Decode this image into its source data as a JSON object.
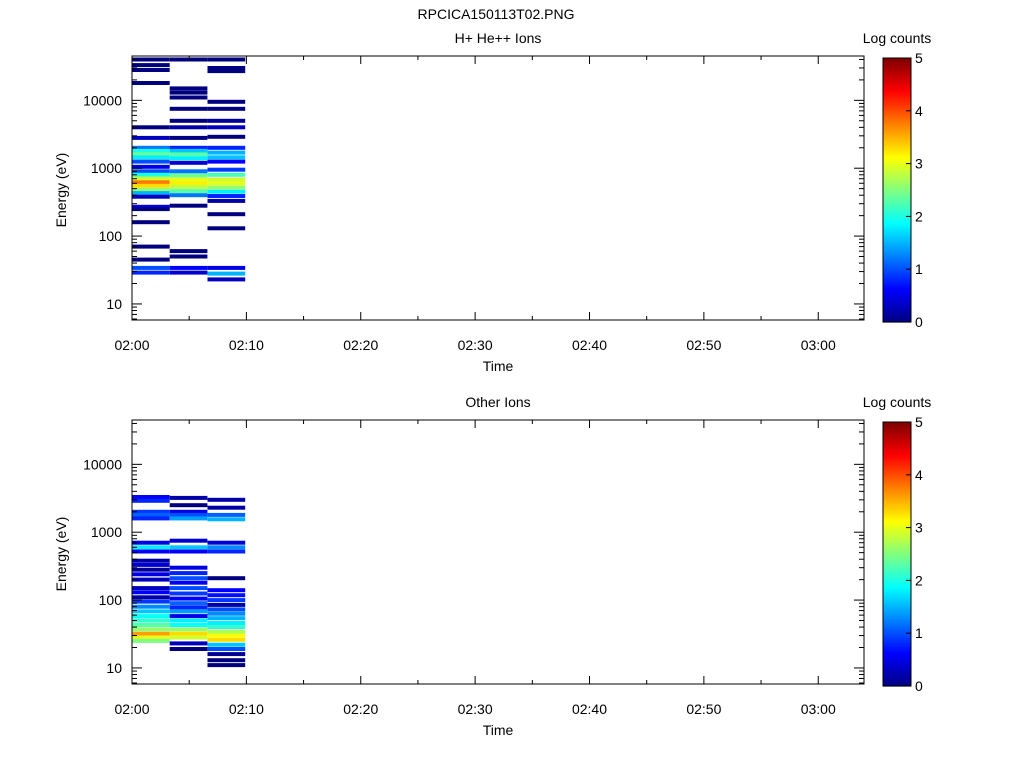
{
  "figure_title": "RPCICA150113T02.PNG",
  "colormap": {
    "stops": [
      "#00007f",
      "#0000ff",
      "#0080ff",
      "#00ffff",
      "#80ff80",
      "#ffff00",
      "#ff8000",
      "#ff0000",
      "#7f0000"
    ]
  },
  "chart_data": [
    {
      "type": "heatmap",
      "title": "H+ He++ Ions",
      "xlabel": "Time",
      "ylabel": "Energy (eV)",
      "colorbar_label": "Log counts",
      "colorbar_range": [
        0,
        5
      ],
      "colorbar_ticks": [
        "0",
        "1",
        "2",
        "3",
        "4",
        "5"
      ],
      "x_ticks": [
        "02:00",
        "02:10",
        "02:20",
        "02:30",
        "02:40",
        "02:50",
        "03:00"
      ],
      "x_range_minutes": [
        0,
        64
      ],
      "y_scale": "log",
      "y_range": [
        5.8,
        45000
      ],
      "y_ticks": [
        {
          "value": 10,
          "label": "10"
        },
        {
          "value": 100,
          "label": "100"
        },
        {
          "value": 1000,
          "label": "1000"
        },
        {
          "value": 10000,
          "label": "10000"
        }
      ],
      "columns_minutes": [
        [
          0,
          3.3
        ],
        [
          3.3,
          6.6
        ],
        [
          6.6,
          9.9
        ]
      ],
      "bands": [
        [
          0,
          40000,
          0
        ],
        [
          0,
          33000,
          0
        ],
        [
          0,
          28000,
          0
        ],
        [
          0,
          18000,
          0
        ],
        [
          0,
          4000,
          0
        ],
        [
          0,
          2800,
          0.3
        ],
        [
          0,
          2000,
          1.2
        ],
        [
          0,
          1800,
          2.0
        ],
        [
          0,
          1600,
          2.4
        ],
        [
          0,
          1450,
          1.8
        ],
        [
          0,
          1250,
          1.0
        ],
        [
          0,
          1050,
          0.5
        ],
        [
          0,
          900,
          1.0
        ],
        [
          0,
          800,
          2.0
        ],
        [
          0,
          700,
          2.9
        ],
        [
          0,
          620,
          3.8
        ],
        [
          0,
          550,
          3.3
        ],
        [
          0,
          480,
          2.6
        ],
        [
          0,
          430,
          1.5
        ],
        [
          0,
          380,
          0.3
        ],
        [
          0,
          270,
          0.5
        ],
        [
          0,
          250,
          0
        ],
        [
          0,
          160,
          0
        ],
        [
          0,
          70,
          0
        ],
        [
          0,
          45,
          0
        ],
        [
          0,
          34,
          1.0
        ],
        [
          0,
          29,
          0.8
        ],
        [
          1,
          40000,
          0
        ],
        [
          1,
          15000,
          0
        ],
        [
          1,
          13000,
          0
        ],
        [
          1,
          11000,
          0
        ],
        [
          1,
          7500,
          0
        ],
        [
          1,
          5000,
          0
        ],
        [
          1,
          4000,
          0.2
        ],
        [
          1,
          2800,
          0
        ],
        [
          1,
          2000,
          0.8
        ],
        [
          1,
          1800,
          1.6
        ],
        [
          1,
          1600,
          2.3
        ],
        [
          1,
          1400,
          1.8
        ],
        [
          1,
          1200,
          0.4
        ],
        [
          1,
          900,
          1.2
        ],
        [
          1,
          780,
          2.4
        ],
        [
          1,
          680,
          3.0
        ],
        [
          1,
          600,
          3.2
        ],
        [
          1,
          530,
          2.8
        ],
        [
          1,
          460,
          2.3
        ],
        [
          1,
          400,
          1.2
        ],
        [
          1,
          280,
          0
        ],
        [
          1,
          60,
          0
        ],
        [
          1,
          50,
          0
        ],
        [
          1,
          34,
          0.6
        ],
        [
          1,
          29,
          0.4
        ],
        [
          2,
          40000,
          0
        ],
        [
          2,
          30000,
          0
        ],
        [
          2,
          27000,
          0
        ],
        [
          2,
          9500,
          0
        ],
        [
          2,
          7500,
          0
        ],
        [
          2,
          5000,
          0.1
        ],
        [
          2,
          4000,
          0.3
        ],
        [
          2,
          2900,
          0
        ],
        [
          2,
          2000,
          0.8
        ],
        [
          2,
          1700,
          1.5
        ],
        [
          2,
          1450,
          1.6
        ],
        [
          2,
          1250,
          0.6
        ],
        [
          2,
          950,
          0.9
        ],
        [
          2,
          800,
          2.2
        ],
        [
          2,
          680,
          2.9
        ],
        [
          2,
          600,
          3.0
        ],
        [
          2,
          520,
          2.6
        ],
        [
          2,
          450,
          1.8
        ],
        [
          2,
          390,
          0.8
        ],
        [
          2,
          330,
          0.2
        ],
        [
          2,
          210,
          0
        ],
        [
          2,
          130,
          0
        ],
        [
          2,
          34,
          0.5
        ],
        [
          2,
          28,
          1.5
        ],
        [
          2,
          23,
          0.3
        ]
      ]
    },
    {
      "type": "heatmap",
      "title": "Other Ions",
      "xlabel": "Time",
      "ylabel": "Energy (eV)",
      "colorbar_label": "Log counts",
      "colorbar_range": [
        0,
        5
      ],
      "colorbar_ticks": [
        "0",
        "1",
        "2",
        "3",
        "4",
        "5"
      ],
      "x_ticks": [
        "02:00",
        "02:10",
        "02:20",
        "02:30",
        "02:40",
        "02:50",
        "03:00"
      ],
      "x_range_minutes": [
        0,
        64
      ],
      "y_scale": "log",
      "y_range": [
        5.8,
        45000
      ],
      "y_ticks": [
        {
          "value": 10,
          "label": "10"
        },
        {
          "value": 100,
          "label": "100"
        },
        {
          "value": 1000,
          "label": "1000"
        },
        {
          "value": 10000,
          "label": "10000"
        }
      ],
      "columns_minutes": [
        [
          0,
          3.3
        ],
        [
          3.3,
          6.6
        ],
        [
          6.6,
          9.9
        ]
      ],
      "bands": [
        [
          0,
          3300,
          0.6
        ],
        [
          0,
          2900,
          0.8
        ],
        [
          0,
          2000,
          0.9
        ],
        [
          0,
          1800,
          1.1
        ],
        [
          0,
          1600,
          0.8
        ],
        [
          0,
          700,
          0.5
        ],
        [
          0,
          600,
          1.8
        ],
        [
          0,
          520,
          0.6
        ],
        [
          0,
          380,
          0.2
        ],
        [
          0,
          330,
          0.4
        ],
        [
          0,
          280,
          0.1
        ],
        [
          0,
          240,
          0.5
        ],
        [
          0,
          200,
          0.3
        ],
        [
          0,
          150,
          0.3
        ],
        [
          0,
          130,
          0.6
        ],
        [
          0,
          110,
          0.2
        ],
        [
          0,
          95,
          0.9
        ],
        [
          0,
          80,
          1.3
        ],
        [
          0,
          68,
          1.6
        ],
        [
          0,
          58,
          1.9
        ],
        [
          0,
          50,
          2.1
        ],
        [
          0,
          43,
          2.3
        ],
        [
          0,
          37,
          2.6
        ],
        [
          0,
          32,
          3.6
        ],
        [
          0,
          28,
          3.0
        ],
        [
          0,
          25,
          2.5
        ],
        [
          1,
          3200,
          0.2
        ],
        [
          1,
          2500,
          0
        ],
        [
          1,
          2000,
          0.5
        ],
        [
          1,
          1800,
          1.0
        ],
        [
          1,
          1600,
          1.4
        ],
        [
          1,
          750,
          0.4
        ],
        [
          1,
          600,
          1.6
        ],
        [
          1,
          520,
          0.6
        ],
        [
          1,
          300,
          0.5
        ],
        [
          1,
          250,
          0.8
        ],
        [
          1,
          210,
          1.0
        ],
        [
          1,
          180,
          0.6
        ],
        [
          1,
          150,
          1.0
        ],
        [
          1,
          125,
          0.9
        ],
        [
          1,
          105,
          0.6
        ],
        [
          1,
          90,
          1.1
        ],
        [
          1,
          78,
          0.8
        ],
        [
          1,
          68,
          1.4
        ],
        [
          1,
          58,
          0.5
        ],
        [
          1,
          50,
          1.8
        ],
        [
          1,
          43,
          1.9
        ],
        [
          1,
          37,
          2.6
        ],
        [
          1,
          32,
          3.3
        ],
        [
          1,
          28,
          2.9
        ],
        [
          1,
          23,
          0.3
        ],
        [
          1,
          19,
          0
        ],
        [
          2,
          3000,
          0.2
        ],
        [
          2,
          2300,
          0.2
        ],
        [
          2,
          1800,
          1.1
        ],
        [
          2,
          1550,
          1.5
        ],
        [
          2,
          700,
          0.4
        ],
        [
          2,
          600,
          1.3
        ],
        [
          2,
          520,
          0.8
        ],
        [
          2,
          210,
          0
        ],
        [
          2,
          140,
          0.6
        ],
        [
          2,
          118,
          0.7
        ],
        [
          2,
          100,
          0.9
        ],
        [
          2,
          85,
          0.2
        ],
        [
          2,
          73,
          1.0
        ],
        [
          2,
          63,
          1.3
        ],
        [
          2,
          54,
          1.5
        ],
        [
          2,
          46,
          1.8
        ],
        [
          2,
          40,
          2.1
        ],
        [
          2,
          34,
          2.7
        ],
        [
          2,
          30,
          3.1
        ],
        [
          2,
          26,
          3.3
        ],
        [
          2,
          22,
          1.6
        ],
        [
          2,
          19,
          1.0
        ],
        [
          2,
          16,
          0.1
        ],
        [
          2,
          13,
          0
        ],
        [
          2,
          11,
          0
        ]
      ]
    }
  ]
}
